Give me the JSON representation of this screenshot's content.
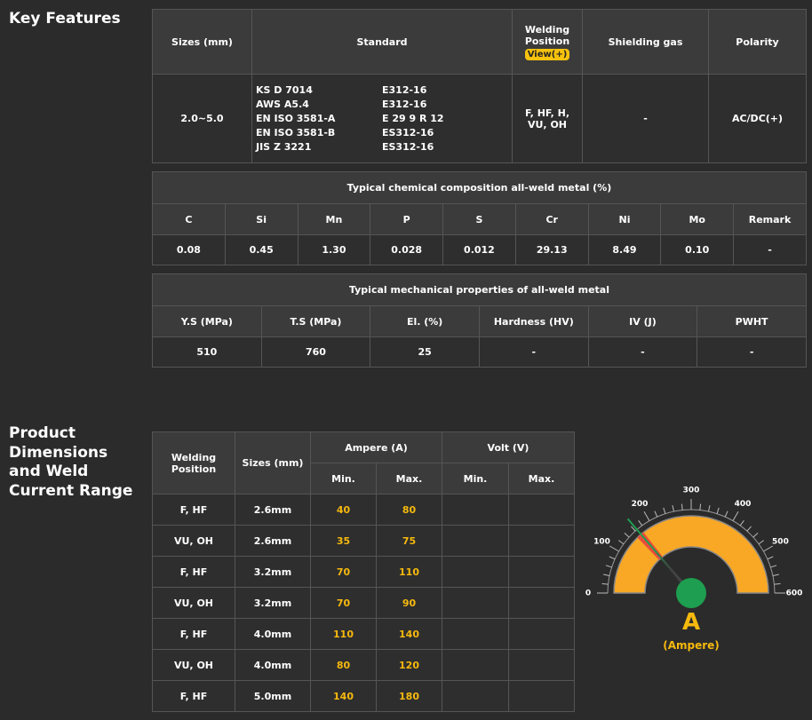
{
  "key_features": {
    "title": "Key Features",
    "headers": [
      "Sizes (mm)",
      "Standard",
      "Welding Position",
      "Shielding gas",
      "Polarity"
    ],
    "view_button": "View(+)",
    "row": {
      "sizes": "2.0~5.0",
      "standard_a": [
        "KS D 7014",
        "AWS A5.4",
        "EN ISO 3581-A",
        "EN ISO 3581-B",
        "JIS Z 3221"
      ],
      "standard_b": [
        "E312-16",
        "E312-16",
        "E 29 9 R 12",
        "ES312-16",
        "ES312-16"
      ],
      "position": "F, HF, H, VU, OH",
      "shielding_gas": "-",
      "polarity": "AC/DC(+)"
    }
  },
  "chemical": {
    "title": "Typical chemical composition all-weld metal (%)",
    "headers": [
      "C",
      "Si",
      "Mn",
      "P",
      "S",
      "Cr",
      "Ni",
      "Mo",
      "Remark"
    ],
    "values": [
      "0.08",
      "0.45",
      "1.30",
      "0.028",
      "0.012",
      "29.13",
      "8.49",
      "0.10",
      "-"
    ]
  },
  "mechanical": {
    "title": "Typical mechanical properties of all-weld metal",
    "headers": [
      "Y.S (MPa)",
      "T.S (MPa)",
      "El. (%)",
      "Hardness (HV)",
      "IV (J)",
      "PWHT"
    ],
    "values": [
      "510",
      "760",
      "25",
      "-",
      "-",
      "-"
    ]
  },
  "product": {
    "title": "Product Dimensions and Weld Current Range",
    "headers": {
      "position": "Welding Position",
      "sizes": "Sizes (mm)",
      "ampere": "Ampere (A)",
      "volt": "Volt (V)",
      "min": "Min.",
      "max": "Max."
    },
    "rows": [
      [
        "F, HF",
        "2.6mm",
        "40",
        "80"
      ],
      [
        "VU, OH",
        "2.6mm",
        "35",
        "75"
      ],
      [
        "F, HF",
        "3.2mm",
        "70",
        "110"
      ],
      [
        "VU, OH",
        "3.2mm",
        "70",
        "90"
      ],
      [
        "F, HF",
        "4.0mm",
        "110",
        "140"
      ],
      [
        "VU, OH",
        "4.0mm",
        "80",
        "120"
      ],
      [
        "F, HF",
        "5.0mm",
        "140",
        "180"
      ]
    ]
  },
  "gauge": {
    "ticks": [
      0,
      100,
      200,
      300,
      400,
      500,
      600
    ],
    "needle": 165,
    "symbol": "A",
    "unit": "(Ampere)"
  }
}
